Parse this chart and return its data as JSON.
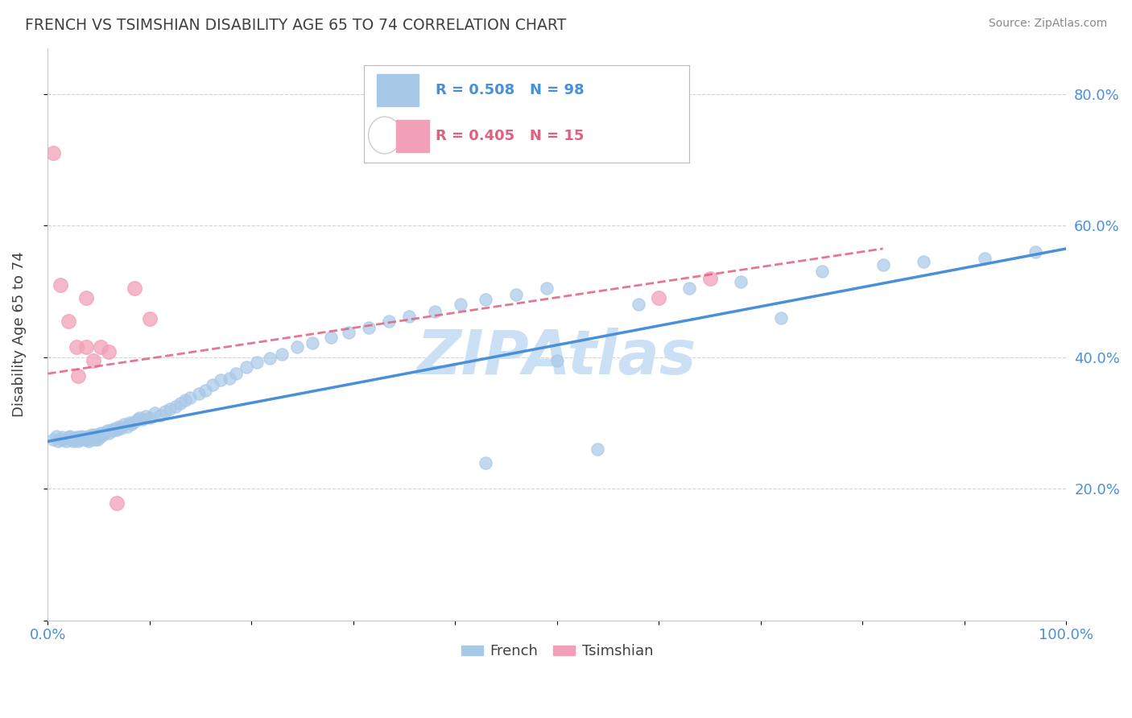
{
  "title": "FRENCH VS TSIMSHIAN DISABILITY AGE 65 TO 74 CORRELATION CHART",
  "source": "Source: ZipAtlas.com",
  "ylabel": "Disability Age 65 to 74",
  "xlim": [
    0.0,
    1.0
  ],
  "ylim": [
    0.0,
    0.87
  ],
  "x_ticks": [
    0.0,
    0.1,
    0.2,
    0.3,
    0.4,
    0.5,
    0.6,
    0.7,
    0.8,
    0.9,
    1.0
  ],
  "y_ticks": [
    0.0,
    0.2,
    0.4,
    0.6,
    0.8
  ],
  "french_R": 0.508,
  "french_N": 98,
  "tsimshian_R": 0.405,
  "tsimshian_N": 15,
  "french_color": "#a8c8e8",
  "tsimshian_color": "#f2a0b8",
  "french_line_color": "#4a90d9",
  "tsimshian_line_color": "#e06080",
  "legend_french_label": "French",
  "legend_tsimshian_label": "Tsimshian",
  "french_x": [
    0.005,
    0.008,
    0.01,
    0.012,
    0.014,
    0.016,
    0.018,
    0.02,
    0.022,
    0.024,
    0.025,
    0.026,
    0.028,
    0.03,
    0.03,
    0.032,
    0.033,
    0.034,
    0.035,
    0.036,
    0.037,
    0.038,
    0.039,
    0.04,
    0.041,
    0.042,
    0.043,
    0.044,
    0.045,
    0.046,
    0.047,
    0.048,
    0.049,
    0.05,
    0.051,
    0.052,
    0.054,
    0.056,
    0.058,
    0.06,
    0.062,
    0.064,
    0.066,
    0.068,
    0.07,
    0.072,
    0.075,
    0.078,
    0.08,
    0.082,
    0.085,
    0.088,
    0.09,
    0.093,
    0.096,
    0.1,
    0.105,
    0.11,
    0.115,
    0.12,
    0.125,
    0.13,
    0.135,
    0.14,
    0.148,
    0.155,
    0.162,
    0.17,
    0.178,
    0.185,
    0.195,
    0.205,
    0.218,
    0.23,
    0.245,
    0.26,
    0.278,
    0.295,
    0.315,
    0.335,
    0.355,
    0.38,
    0.405,
    0.43,
    0.46,
    0.49,
    0.43,
    0.5,
    0.54,
    0.58,
    0.63,
    0.68,
    0.72,
    0.76,
    0.82,
    0.86,
    0.92,
    0.97
  ],
  "french_y": [
    0.275,
    0.28,
    0.272,
    0.275,
    0.278,
    0.275,
    0.272,
    0.278,
    0.28,
    0.275,
    0.272,
    0.276,
    0.278,
    0.272,
    0.278,
    0.275,
    0.28,
    0.276,
    0.278,
    0.275,
    0.278,
    0.275,
    0.28,
    0.272,
    0.278,
    0.275,
    0.282,
    0.278,
    0.28,
    0.275,
    0.282,
    0.278,
    0.275,
    0.282,
    0.278,
    0.285,
    0.282,
    0.285,
    0.288,
    0.285,
    0.29,
    0.288,
    0.292,
    0.29,
    0.295,
    0.292,
    0.298,
    0.295,
    0.3,
    0.298,
    0.302,
    0.305,
    0.308,
    0.305,
    0.31,
    0.308,
    0.315,
    0.312,
    0.318,
    0.322,
    0.325,
    0.33,
    0.335,
    0.338,
    0.345,
    0.35,
    0.358,
    0.365,
    0.368,
    0.375,
    0.385,
    0.392,
    0.398,
    0.405,
    0.415,
    0.422,
    0.43,
    0.438,
    0.445,
    0.455,
    0.462,
    0.47,
    0.48,
    0.488,
    0.495,
    0.505,
    0.24,
    0.395,
    0.26,
    0.48,
    0.505,
    0.515,
    0.46,
    0.53,
    0.54,
    0.545,
    0.55,
    0.56
  ],
  "tsimshian_x": [
    0.005,
    0.012,
    0.02,
    0.028,
    0.03,
    0.038,
    0.045,
    0.052,
    0.06,
    0.068,
    0.038,
    0.085,
    0.1,
    0.6,
    0.65
  ],
  "tsimshian_y": [
    0.71,
    0.51,
    0.455,
    0.415,
    0.372,
    0.415,
    0.395,
    0.415,
    0.408,
    0.178,
    0.49,
    0.505,
    0.458,
    0.49,
    0.52
  ],
  "french_trendline_x": [
    0.0,
    1.0
  ],
  "french_trendline_y": [
    0.272,
    0.565
  ],
  "tsimshian_trendline_x": [
    0.0,
    0.82
  ],
  "tsimshian_trendline_y": [
    0.375,
    0.565
  ],
  "background_color": "#ffffff",
  "grid_color": "#c8c8c8",
  "title_color": "#404040",
  "axis_label_color": "#4a90d9",
  "right_tick_color": "#4a90d9",
  "watermark_color": "#cce0f5",
  "watermark_fontsize": 55,
  "source_color": "#888888"
}
